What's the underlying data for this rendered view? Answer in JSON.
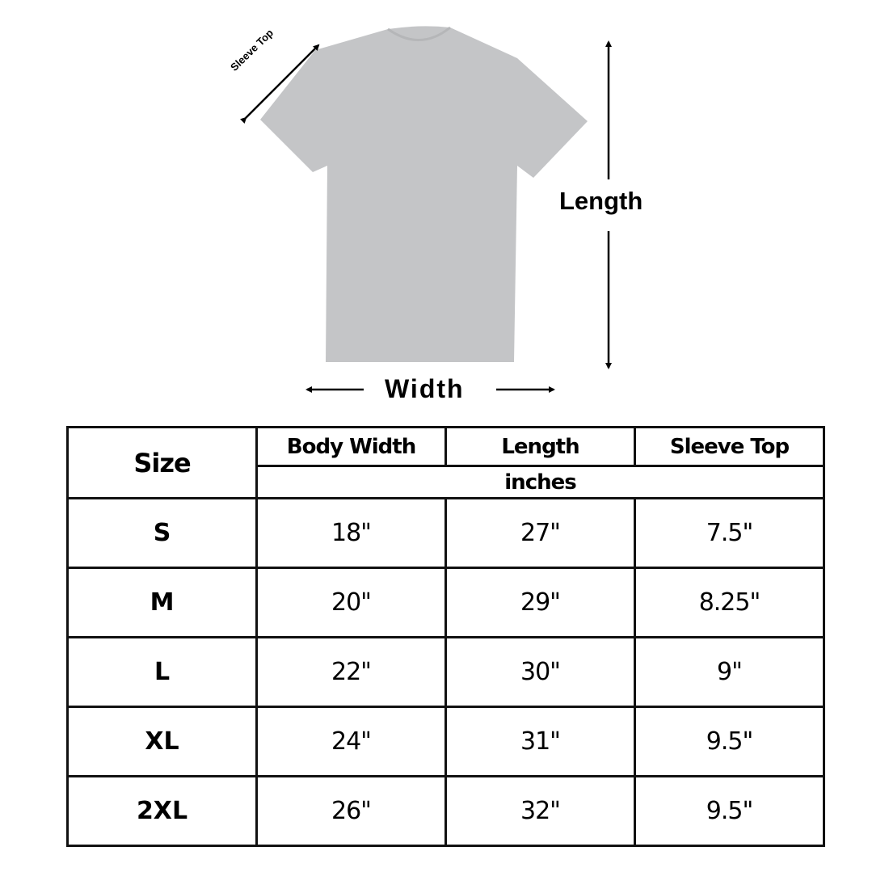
{
  "diagram": {
    "sleeve_label": "Sleeve Top",
    "length_label": "Length",
    "width_label": "Width",
    "shirt_color": "#c4c5c7"
  },
  "table": {
    "headers": {
      "size": "Size",
      "body_width": "Body Width",
      "length": "Length",
      "sleeve_top": "Sleeve Top",
      "unit": "inches"
    },
    "rows": [
      {
        "size": "S",
        "body_width": "18\"",
        "length": "27\"",
        "sleeve_top": "7.5\""
      },
      {
        "size": "M",
        "body_width": "20\"",
        "length": "29\"",
        "sleeve_top": "8.25\""
      },
      {
        "size": "L",
        "body_width": "22\"",
        "length": "30\"",
        "sleeve_top": "9\""
      },
      {
        "size": "XL",
        "body_width": "24\"",
        "length": "31\"",
        "sleeve_top": "9.5\""
      },
      {
        "size": "2XL",
        "body_width": "26\"",
        "length": "32\"",
        "sleeve_top": "9.5\""
      }
    ]
  }
}
